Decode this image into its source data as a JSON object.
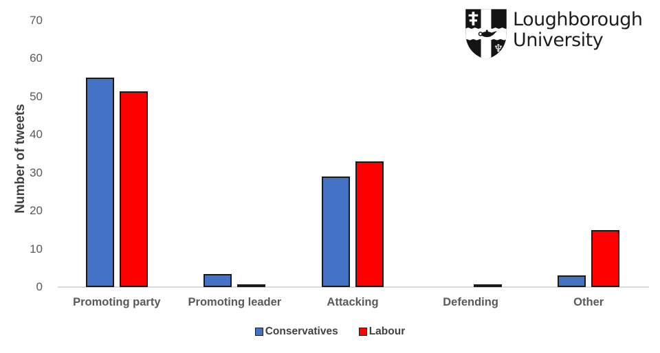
{
  "logo": {
    "line1": "Loughborough",
    "line2": "University",
    "icon": "loughborough-shield-icon",
    "text_color": "#1d1d1b"
  },
  "legend": {
    "items": [
      {
        "label": "Conservatives",
        "color": "#4472C4"
      },
      {
        "label": "Labour",
        "color": "#FF0000"
      }
    ]
  },
  "chart_data": {
    "type": "bar",
    "title": "",
    "xlabel": "",
    "ylabel": "Number of tweets",
    "categories": [
      "Promoting party",
      "Promoting leader",
      "Attacking",
      "Defending",
      "Other"
    ],
    "series": [
      {
        "name": "Conservatives",
        "color": "#4472C4",
        "values": [
          55,
          3.5,
          29,
          0,
          3
        ]
      },
      {
        "name": "Labour",
        "color": "#FF0000",
        "values": [
          51.3,
          0.5,
          33,
          0.3,
          15
        ]
      }
    ],
    "ylim": [
      0,
      70
    ],
    "yticks": [
      0,
      10,
      20,
      30,
      40,
      50,
      60,
      70
    ],
    "grid": false,
    "legend_position": "bottom",
    "bar_outline_color": "#1a1a1a",
    "axis_line_color": "#d9d9d9",
    "tick_label_color": "#595959",
    "axis_title_color": "#404040"
  }
}
